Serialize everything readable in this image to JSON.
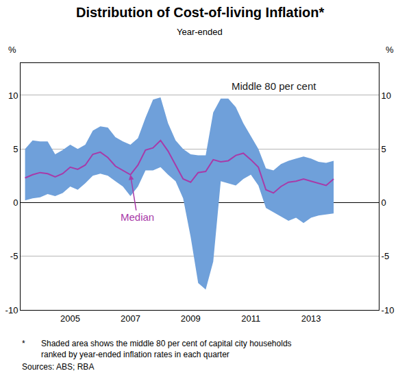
{
  "chart_data": {
    "type": "line",
    "title": "Distribution of Cost-of-living Inflation*",
    "subtitle": "Year-ended",
    "ylabel": "%",
    "categories": [
      null,
      null,
      null,
      null,
      null,
      null,
      "2005",
      null,
      null,
      null,
      null,
      null,
      null,
      null,
      "2007",
      null,
      null,
      null,
      null,
      null,
      null,
      null,
      "2009",
      null,
      null,
      null,
      null,
      null,
      null,
      null,
      "2011",
      null,
      null,
      null,
      null,
      null,
      null,
      null,
      "2013",
      null,
      null,
      null
    ],
    "series": [
      {
        "name": "Middle 80 per cent",
        "type": "area",
        "color": "#6fa0da",
        "lower": [
          0.2,
          0.4,
          0.5,
          0.8,
          0.6,
          0.9,
          1.5,
          1.2,
          1.8,
          2.5,
          2.7,
          2.5,
          2.0,
          1.5,
          0.6,
          1.5,
          3.0,
          3.0,
          3.3,
          2.6,
          2.0,
          0.4,
          -3.2,
          -7.5,
          -8.1,
          -5.5,
          2.0,
          1.8,
          1.6,
          2.2,
          2.6,
          1.6,
          -0.5,
          -0.9,
          -1.3,
          -1.7,
          -1.4,
          -1.9,
          -1.4,
          -1.2,
          -1.1,
          -1.0
        ],
        "upper": [
          5.0,
          5.8,
          5.7,
          5.7,
          4.5,
          4.9,
          5.4,
          5.0,
          5.4,
          6.7,
          7.1,
          7.0,
          6.1,
          5.7,
          5.4,
          6.0,
          7.9,
          9.6,
          9.8,
          7.4,
          5.8,
          5.0,
          4.5,
          4.4,
          4.4,
          8.4,
          9.7,
          9.7,
          8.9,
          7.4,
          6.2,
          5.0,
          3.2,
          3.0,
          3.6,
          3.9,
          4.1,
          4.3,
          4.1,
          3.8,
          3.7,
          3.9
        ]
      },
      {
        "name": "Median",
        "type": "line",
        "color": "#a83aa8",
        "values": [
          2.3,
          2.6,
          2.8,
          2.7,
          2.4,
          2.7,
          3.3,
          3.1,
          3.5,
          4.5,
          4.7,
          4.2,
          3.4,
          3.0,
          2.6,
          3.5,
          4.9,
          5.1,
          5.8,
          4.8,
          3.5,
          2.2,
          1.9,
          2.8,
          2.9,
          4.0,
          3.8,
          3.9,
          4.4,
          4.6,
          4.0,
          3.3,
          1.2,
          0.9,
          1.5,
          1.9,
          2.0,
          2.2,
          2.0,
          1.8,
          1.6,
          2.2
        ]
      }
    ],
    "ylim": [
      -10,
      13
    ],
    "yticks": [
      -10,
      -5,
      0,
      5,
      10
    ],
    "grid": true,
    "footnote": {
      "marker": "*",
      "text": "Shaded area shows the middle 80 per cent of capital city households ranked by year-ended inflation rates in each quarter"
    },
    "source": "Sources: ABS; RBA"
  }
}
